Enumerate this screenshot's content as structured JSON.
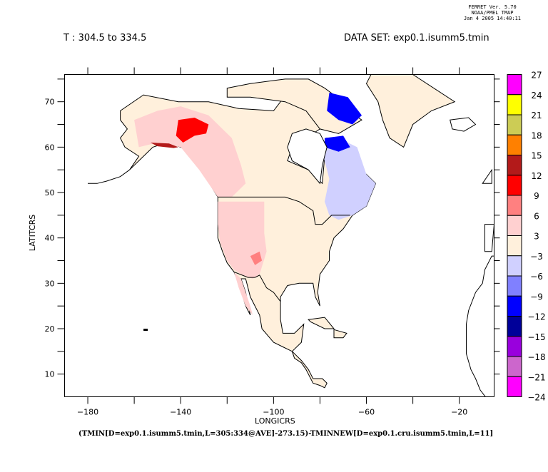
{
  "header": {
    "program": "FERRET Ver. 5.70",
    "org": "NOAA/PMEL TMAP",
    "timestamp": "Jan  4 2005 14:40:11",
    "time_range": "T : 304.5 to 334.5",
    "dataset": "DATA SET: exp0.1.isumm5.tmin"
  },
  "chart_data": {
    "type": "heatmap",
    "title": "(TMIN[D=exp0.1.isumm5.tmin,L=305:334@AVE]-273.15)-TMINNEW[D=exp0.1.cru.isumm5.tmin,L=11]",
    "xlabel": "LONGICRS",
    "ylabel": "LATITCRS",
    "xlim": [
      -190,
      -5
    ],
    "ylim": [
      5,
      76
    ],
    "x_ticks": [
      -180,
      -140,
      -100,
      -60,
      -20
    ],
    "x_minor_ticks": [
      -160,
      -120,
      -80,
      -40
    ],
    "y_ticks": [
      10,
      20,
      30,
      40,
      50,
      60,
      70
    ],
    "y_minor_ticks": [
      15,
      25,
      35,
      45,
      55,
      65,
      75
    ],
    "colorbar": {
      "levels": [
        "27",
        "24",
        "21",
        "18",
        "15",
        "12",
        "9",
        "6",
        "3",
        "-3",
        "-6",
        "-9",
        "-12",
        "-15",
        "-18",
        "-21",
        "-24"
      ],
      "colors": [
        "#ff00ff",
        "#ffff00",
        "#cccc55",
        "#ff8000",
        "#b31a1a",
        "#ff0000",
        "#ff8080",
        "#ffd0d0",
        "#fff0dc",
        "#d0d0ff",
        "#8080ff",
        "#0000ff",
        "#000099",
        "#9900dd",
        "#cc66cc",
        "#ff00ff"
      ]
    },
    "regions": [
      {
        "name": "north-america-land",
        "bin": "-3 to 3",
        "color": "#fff0dc"
      },
      {
        "name": "alaska-west-canada",
        "bin": "3 to 6",
        "color": "#ffd0d0"
      },
      {
        "name": "yukon-warm-core",
        "bin": "9 to 12",
        "color": "#ff0000"
      },
      {
        "name": "western-us",
        "bin": "3 to 6",
        "color": "#ffd0d0"
      },
      {
        "name": "baffin-cold-core",
        "bin": "-12 to -9",
        "color": "#0000ff"
      },
      {
        "name": "labrador-quebec",
        "bin": "-6 to -3",
        "color": "#d0d0ff"
      },
      {
        "name": "greenland-south",
        "bin": "-3 to 3",
        "color": "#fff0dc"
      }
    ]
  }
}
